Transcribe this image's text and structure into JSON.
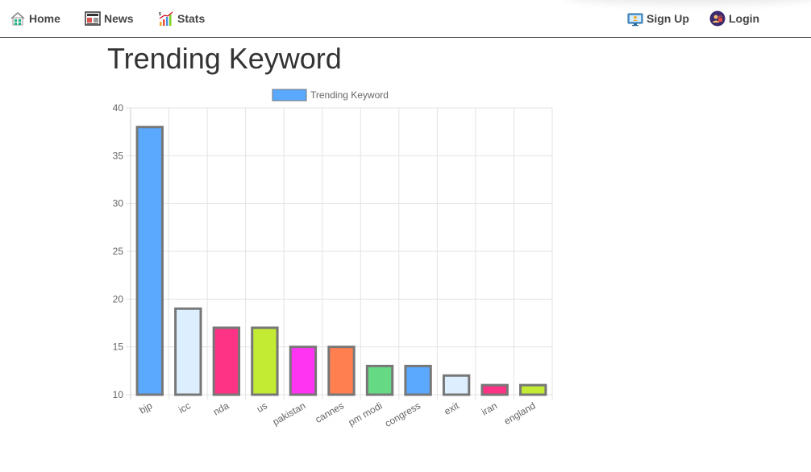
{
  "nav": {
    "home_label": "Home",
    "news_label": "News",
    "stats_label": "Stats",
    "signup_label": "Sign Up",
    "login_label": "Login"
  },
  "page": {
    "title": "Trending Keyword"
  },
  "chart_data": {
    "type": "bar",
    "legend_position": "top",
    "grid": true,
    "ylim": [
      10,
      40
    ],
    "yticks": [
      10,
      15,
      20,
      25,
      30,
      35,
      40
    ],
    "categories": [
      "bjp",
      "icc",
      "nda",
      "us",
      "pakistan",
      "cannes",
      "pm modi",
      "congress",
      "exit",
      "iran",
      "england"
    ],
    "series": [
      {
        "name": "Trending Keyword",
        "values": [
          38,
          19,
          17,
          17,
          15,
          15,
          13,
          13,
          12,
          11,
          11
        ]
      }
    ],
    "bar_colors": [
      "#5aa9ff",
      "#ddefff",
      "#ff3385",
      "#c4eb33",
      "#ff33f2",
      "#ff7f50",
      "#66d985",
      "#5aa9ff",
      "#ddefff",
      "#ff3385",
      "#c4eb33"
    ],
    "border_color": "#777777",
    "legend_color": "#5aa9ff"
  }
}
